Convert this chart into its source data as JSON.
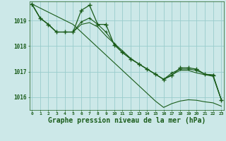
{
  "bg_color": "#cce8e8",
  "grid_color": "#99cccc",
  "line_color": "#1a5c1a",
  "xlabel": "Graphe pression niveau de la mer (hPa)",
  "xlabel_fontsize": 7,
  "ylim": [
    1015.5,
    1019.75
  ],
  "xlim": [
    -0.3,
    23.3
  ],
  "yticks": [
    1016,
    1017,
    1018,
    1019
  ],
  "xticks": [
    0,
    1,
    2,
    3,
    4,
    5,
    6,
    7,
    8,
    9,
    10,
    11,
    12,
    13,
    14,
    15,
    16,
    17,
    18,
    19,
    20,
    21,
    22,
    23
  ],
  "series1": [
    1019.65,
    1019.1,
    1018.85,
    1018.55,
    1018.55,
    1018.55,
    1019.4,
    1019.6,
    1018.85,
    1018.85,
    1018.05,
    1017.75,
    1017.5,
    1017.3,
    1017.1,
    1016.9,
    1016.7,
    1016.85,
    1017.15,
    1017.15,
    1017.1,
    1016.9,
    1016.85,
    1015.9
  ],
  "series2": [
    1019.65,
    1019.1,
    1018.85,
    1018.55,
    1018.55,
    1018.55,
    1018.95,
    1019.1,
    1018.85,
    1018.55,
    1018.1,
    1017.75,
    1017.5,
    1017.3,
    1017.1,
    1016.9,
    1016.7,
    1016.95,
    1017.1,
    1017.1,
    1017.05,
    1016.9,
    1016.88,
    1015.9
  ],
  "series3": [
    1019.65,
    1019.1,
    1018.85,
    1018.55,
    1018.55,
    1018.55,
    1018.85,
    1018.92,
    1018.75,
    1018.4,
    1018.1,
    1017.82,
    1017.52,
    1017.3,
    1017.1,
    1016.9,
    1016.7,
    1016.88,
    1017.05,
    1017.05,
    1016.95,
    1016.88,
    1016.82,
    1015.9
  ],
  "trend": [
    1019.65,
    1019.49,
    1019.33,
    1019.17,
    1019.01,
    1018.85,
    1018.55,
    1018.25,
    1017.95,
    1017.65,
    1017.35,
    1017.05,
    1016.75,
    1016.45,
    1016.15,
    1015.85,
    1015.6,
    1015.75,
    1015.85,
    1015.9,
    1015.88,
    1015.82,
    1015.78,
    1015.65
  ]
}
